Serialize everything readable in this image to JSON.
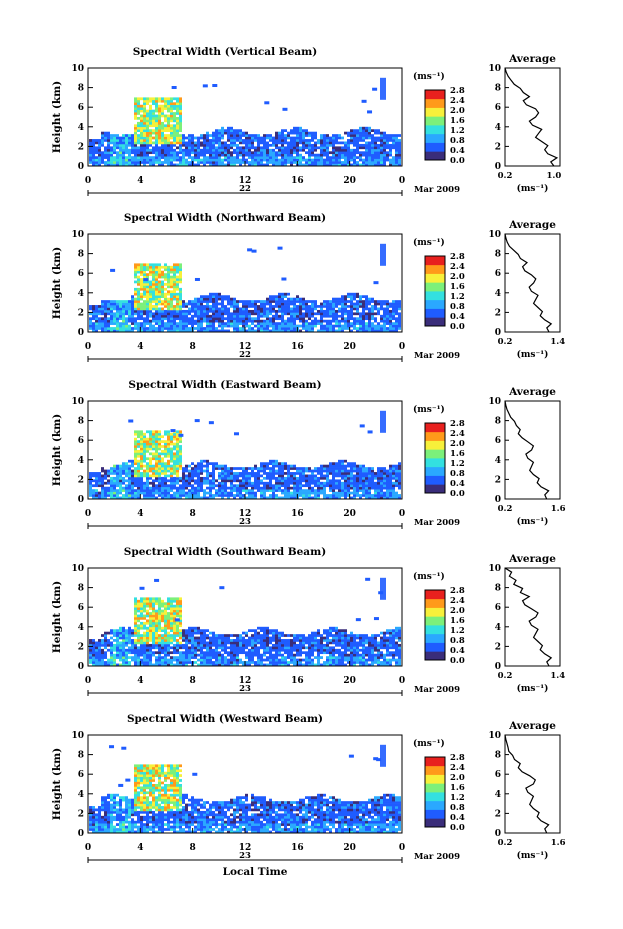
{
  "chart_data": [
    {
      "type": "heatmap",
      "title": "Spectral Width (Vertical Beam)",
      "ylabel": "Height (km)",
      "xticks": [
        "0",
        "4",
        "8",
        "12",
        "16",
        "20",
        "0"
      ],
      "date_day": "22",
      "date_month": "Mar 2009",
      "colorbar": {
        "unit": "(ms⁻¹)",
        "ticks": [
          "2.8",
          "2.4",
          "2.0",
          "1.6",
          "1.2",
          "0.8",
          "0.4",
          "0.0"
        ]
      },
      "profile": {
        "title": "Average",
        "xticks": [
          "0.2",
          "1.0"
        ],
        "xlim": [
          0.2,
          1.1
        ],
        "xlabel": "(ms⁻¹)",
        "yticks": [
          "0",
          "2",
          "4",
          "6",
          "8",
          "10"
        ],
        "values": [
          1.0,
          0.95,
          1.05,
          0.9,
          0.85,
          0.9,
          0.8,
          0.7,
          0.75,
          0.8,
          0.65,
          0.6,
          0.7,
          0.75,
          0.7,
          0.55,
          0.5,
          0.6,
          0.5,
          0.45,
          0.35,
          0.3,
          0.25,
          0.22,
          0.2
        ]
      }
    },
    {
      "type": "heatmap",
      "title": "Spectral Width (Northward Beam)",
      "ylabel": "Height (km)",
      "xticks": [
        "0",
        "4",
        "8",
        "12",
        "16",
        "20",
        "0"
      ],
      "date_day": "22",
      "date_month": "Mar 2009",
      "colorbar": {
        "unit": "(ms⁻¹)",
        "ticks": [
          "2.8",
          "2.4",
          "2.0",
          "1.6",
          "1.2",
          "0.8",
          "0.4",
          "0.0"
        ]
      },
      "profile": {
        "title": "Average",
        "xticks": [
          "0.2",
          "1.4"
        ],
        "xlim": [
          0.2,
          1.45
        ],
        "xlabel": "(ms⁻¹)",
        "yticks": [
          "0",
          "2",
          "4",
          "6",
          "8",
          "10"
        ],
        "values": [
          1.2,
          1.15,
          1.25,
          1.1,
          1.0,
          1.05,
          0.95,
          0.85,
          0.9,
          0.95,
          0.8,
          0.75,
          0.85,
          0.9,
          0.8,
          0.65,
          0.6,
          0.7,
          0.55,
          0.5,
          0.4,
          0.3,
          0.25,
          0.22,
          0.2
        ]
      }
    },
    {
      "type": "heatmap",
      "title": "Spectral Width (Eastward Beam)",
      "ylabel": "Height (km)",
      "xticks": [
        "0",
        "4",
        "8",
        "12",
        "16",
        "20",
        "0"
      ],
      "date_day": "23",
      "date_month": "Mar 2009",
      "colorbar": {
        "unit": "(ms⁻¹)",
        "ticks": [
          "2.8",
          "2.4",
          "2.0",
          "1.6",
          "1.2",
          "0.8",
          "0.4",
          "0.0"
        ]
      },
      "profile": {
        "title": "Average",
        "xticks": [
          "0.2",
          "1.6"
        ],
        "xlim": [
          0.2,
          1.65
        ],
        "xlabel": "(ms⁻¹)",
        "yticks": [
          "0",
          "2",
          "4",
          "6",
          "8",
          "10"
        ],
        "values": [
          1.3,
          1.25,
          1.35,
          1.15,
          1.05,
          1.1,
          0.95,
          0.85,
          0.9,
          0.95,
          0.8,
          0.75,
          0.9,
          0.95,
          0.8,
          0.65,
          0.55,
          0.6,
          0.5,
          0.45,
          0.35,
          0.3,
          0.25,
          0.22,
          0.2
        ]
      }
    },
    {
      "type": "heatmap",
      "title": "Spectral Width (Southward Beam)",
      "ylabel": "Height (km)",
      "xticks": [
        "0",
        "4",
        "8",
        "12",
        "16",
        "20",
        "0"
      ],
      "date_day": "23",
      "date_month": "Mar 2009",
      "colorbar": {
        "unit": "(ms⁻¹)",
        "ticks": [
          "2.8",
          "2.4",
          "2.0",
          "1.6",
          "1.2",
          "0.8",
          "0.4",
          "0.0"
        ]
      },
      "profile": {
        "title": "Average",
        "xticks": [
          "0.2",
          "1.4"
        ],
        "xlim": [
          0.2,
          1.45
        ],
        "xlabel": "(ms⁻¹)",
        "yticks": [
          "0",
          "2",
          "4",
          "6",
          "8",
          "10"
        ],
        "values": [
          1.2,
          1.15,
          1.25,
          1.1,
          1.0,
          1.05,
          0.95,
          0.85,
          0.9,
          0.95,
          0.8,
          0.75,
          0.9,
          0.95,
          0.8,
          0.65,
          0.6,
          0.75,
          0.55,
          0.6,
          0.4,
          0.45,
          0.3,
          0.35,
          0.2
        ]
      }
    },
    {
      "type": "heatmap",
      "title": "Spectral Width (Westward Beam)",
      "ylabel": "Height (km)",
      "xticks": [
        "0",
        "4",
        "8",
        "12",
        "16",
        "20",
        "0"
      ],
      "date_day": "23",
      "date_month": "Mar 2009",
      "colorbar": {
        "unit": "(ms⁻¹)",
        "ticks": [
          "2.8",
          "2.4",
          "2.0",
          "1.6",
          "1.2",
          "0.8",
          "0.4",
          "0.0"
        ]
      },
      "profile": {
        "title": "Average",
        "xticks": [
          "0.2",
          "1.6"
        ],
        "xlim": [
          0.2,
          1.65
        ],
        "xlabel": "(ms⁻¹)",
        "yticks": [
          "0",
          "2",
          "4",
          "6",
          "8",
          "10"
        ],
        "values": [
          1.3,
          1.25,
          1.35,
          1.15,
          1.05,
          1.1,
          0.95,
          0.85,
          0.9,
          0.95,
          0.8,
          0.75,
          0.95,
          1.0,
          0.85,
          0.65,
          0.55,
          0.6,
          0.45,
          0.4,
          0.3,
          0.28,
          0.25,
          0.22,
          0.2
        ]
      }
    }
  ],
  "xlabel": "Local Time",
  "colors": {
    "scale": [
      "#3a2d7a",
      "#1f5cff",
      "#2aa8ff",
      "#33e0e0",
      "#7cf07a",
      "#f7f03a",
      "#ff9a1a",
      "#e8201e"
    ]
  }
}
